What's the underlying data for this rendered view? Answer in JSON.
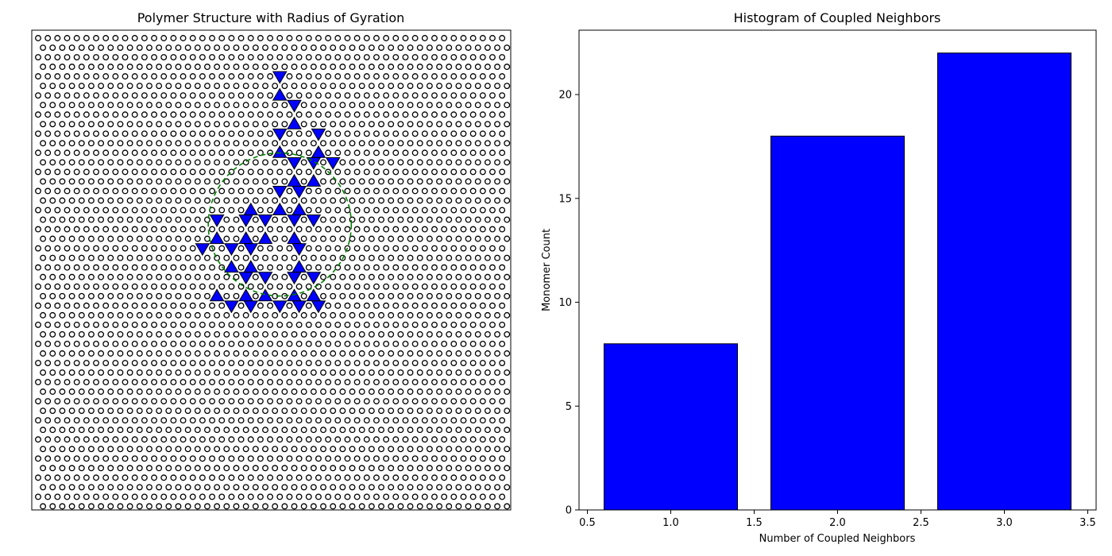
{
  "chart_data": [
    {
      "type": "scatter",
      "title": "Polymer Structure with Radius of Gyration",
      "xlabel": "",
      "ylabel": "",
      "axes_visible": false,
      "lattice": {
        "kind": "triangular",
        "columns": 49,
        "rows": 50,
        "marker": "hollow-circle",
        "marker_color": "#000000"
      },
      "monomers": [
        {
          "col": 25,
          "row": 4,
          "shape": "down"
        },
        {
          "col": 25,
          "row": 6,
          "shape": "up"
        },
        {
          "col": 26,
          "row": 7,
          "shape": "down"
        },
        {
          "col": 26,
          "row": 9,
          "shape": "up"
        },
        {
          "col": 25,
          "row": 10,
          "shape": "down"
        },
        {
          "col": 29,
          "row": 10,
          "shape": "down"
        },
        {
          "col": 25,
          "row": 12,
          "shape": "up"
        },
        {
          "col": 29,
          "row": 12,
          "shape": "up"
        },
        {
          "col": 26,
          "row": 13,
          "shape": "down"
        },
        {
          "col": 28,
          "row": 13,
          "shape": "down"
        },
        {
          "col": 30,
          "row": 13,
          "shape": "down"
        },
        {
          "col": 26,
          "row": 15,
          "shape": "up"
        },
        {
          "col": 28,
          "row": 15,
          "shape": "up"
        },
        {
          "col": 25,
          "row": 16,
          "shape": "down"
        },
        {
          "col": 27,
          "row": 16,
          "shape": "down"
        },
        {
          "col": 22,
          "row": 18,
          "shape": "up"
        },
        {
          "col": 25,
          "row": 18,
          "shape": "up"
        },
        {
          "col": 27,
          "row": 18,
          "shape": "up"
        },
        {
          "col": 18,
          "row": 19,
          "shape": "down"
        },
        {
          "col": 21,
          "row": 19,
          "shape": "down"
        },
        {
          "col": 23,
          "row": 19,
          "shape": "down"
        },
        {
          "col": 26,
          "row": 19,
          "shape": "down"
        },
        {
          "col": 28,
          "row": 19,
          "shape": "down"
        },
        {
          "col": 18,
          "row": 21,
          "shape": "up"
        },
        {
          "col": 21,
          "row": 21,
          "shape": "up"
        },
        {
          "col": 23,
          "row": 21,
          "shape": "up"
        },
        {
          "col": 26,
          "row": 21,
          "shape": "up"
        },
        {
          "col": 17,
          "row": 22,
          "shape": "down"
        },
        {
          "col": 20,
          "row": 22,
          "shape": "down"
        },
        {
          "col": 22,
          "row": 22,
          "shape": "down"
        },
        {
          "col": 27,
          "row": 22,
          "shape": "down"
        },
        {
          "col": 20,
          "row": 24,
          "shape": "up"
        },
        {
          "col": 22,
          "row": 24,
          "shape": "up"
        },
        {
          "col": 27,
          "row": 24,
          "shape": "up"
        },
        {
          "col": 21,
          "row": 25,
          "shape": "down"
        },
        {
          "col": 23,
          "row": 25,
          "shape": "down"
        },
        {
          "col": 26,
          "row": 25,
          "shape": "down"
        },
        {
          "col": 28,
          "row": 25,
          "shape": "down"
        },
        {
          "col": 18,
          "row": 27,
          "shape": "up"
        },
        {
          "col": 21,
          "row": 27,
          "shape": "up"
        },
        {
          "col": 23,
          "row": 27,
          "shape": "up"
        },
        {
          "col": 26,
          "row": 27,
          "shape": "up"
        },
        {
          "col": 28,
          "row": 27,
          "shape": "up"
        },
        {
          "col": 20,
          "row": 28,
          "shape": "down"
        },
        {
          "col": 22,
          "row": 28,
          "shape": "down"
        },
        {
          "col": 25,
          "row": 28,
          "shape": "down"
        },
        {
          "col": 27,
          "row": 28,
          "shape": "down"
        },
        {
          "col": 29,
          "row": 28,
          "shape": "down"
        }
      ],
      "monomer_fill": "#0000ff",
      "monomer_edge": "#000000",
      "radius_of_gyration_circle": {
        "center_col": 25,
        "center_row": 19.5,
        "radius_cols": 7.4,
        "color": "#008000",
        "style": "dashed"
      }
    },
    {
      "type": "bar",
      "title": "Histogram of Coupled Neighbors",
      "xlabel": "Number of Coupled Neighbors",
      "ylabel": "Monomer Count",
      "x": [
        1,
        2,
        3
      ],
      "values": [
        8,
        18,
        22
      ],
      "bar_width": 0.8,
      "xlim": [
        0.45,
        3.55
      ],
      "ylim": [
        0,
        23.1
      ],
      "xticks": [
        0.5,
        1.0,
        1.5,
        2.0,
        2.5,
        3.0,
        3.5
      ],
      "xtick_labels": [
        "0.5",
        "1.0",
        "1.5",
        "2.0",
        "2.5",
        "3.0",
        "3.5"
      ],
      "yticks": [
        0,
        5,
        10,
        15,
        20
      ],
      "ytick_labels": [
        "0",
        "5",
        "10",
        "15",
        "20"
      ],
      "bar_color": "#0000ff",
      "bar_edge": "#000000",
      "grid": false
    }
  ]
}
